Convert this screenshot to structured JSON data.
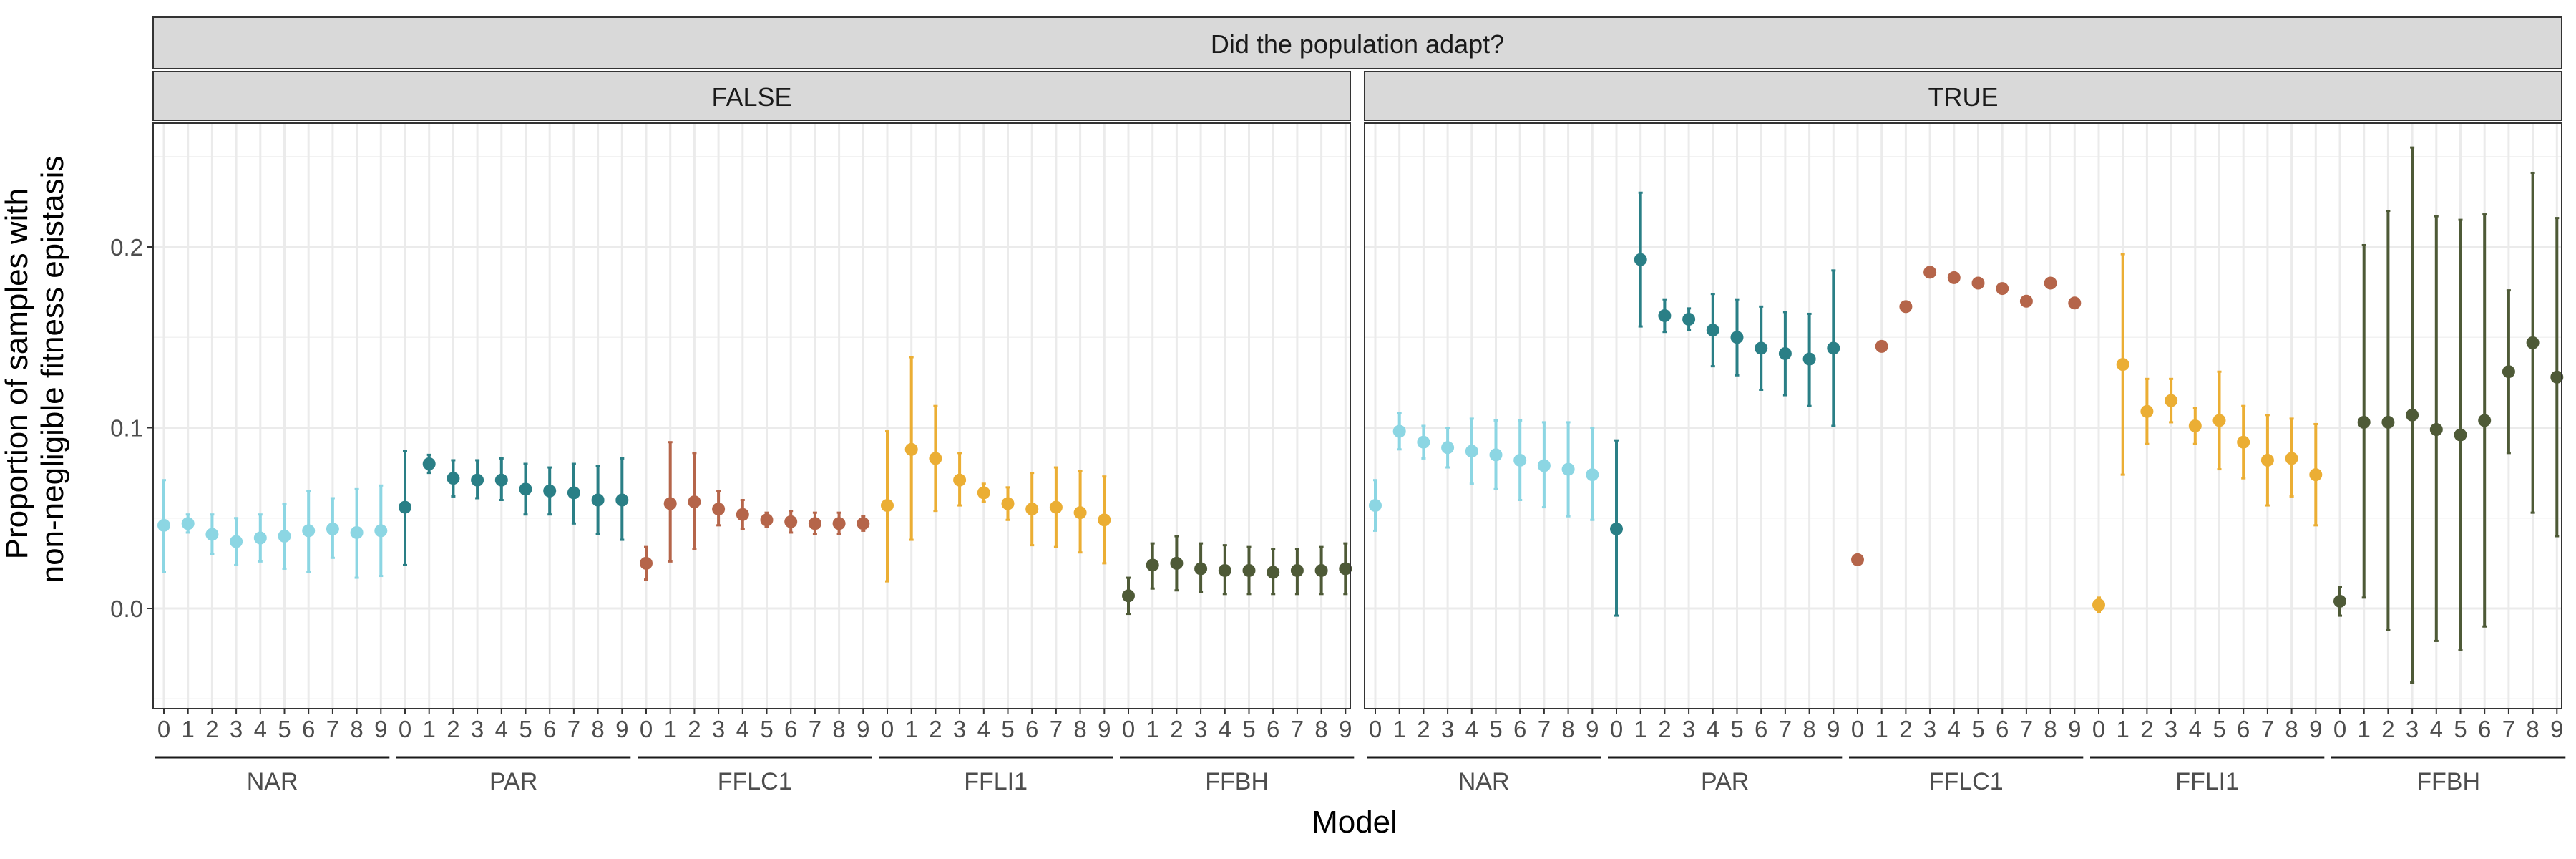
{
  "chart_data": {
    "type": "scatter",
    "title": "Did the population adapt?",
    "xlabel": "Model",
    "ylabel": [
      "Proportion of samples with",
      "non-negligible fitness epistasis"
    ],
    "ylim": [
      -0.055,
      0.27
    ],
    "yticks": [
      0.0,
      0.1,
      0.2
    ],
    "ytick_labels": [
      "0.0",
      "0.1",
      "0.2"
    ],
    "grid": true,
    "x_ticks": [
      "0",
      "1",
      "2",
      "3",
      "4",
      "5",
      "6",
      "7",
      "8",
      "9"
    ],
    "groups": [
      {
        "name": "NAR",
        "color": "#8cd6e3"
      },
      {
        "name": "PAR",
        "color": "#2a7f86"
      },
      {
        "name": "FFLC1",
        "color": "#b5654a"
      },
      {
        "name": "FFLI1",
        "color": "#ebae34"
      },
      {
        "name": "FFBH",
        "color": "#4e5a37"
      }
    ],
    "panels": [
      {
        "label": "FALSE",
        "series": [
          {
            "group": "NAR",
            "values": [
              0.046,
              0.047,
              0.041,
              0.037,
              0.039,
              0.04,
              0.043,
              0.044,
              0.042,
              0.043
            ],
            "lower": [
              0.02,
              0.042,
              0.03,
              0.024,
              0.026,
              0.022,
              0.02,
              0.028,
              0.017,
              0.018
            ],
            "upper": [
              0.071,
              0.052,
              0.052,
              0.05,
              0.052,
              0.058,
              0.065,
              0.061,
              0.066,
              0.068
            ]
          },
          {
            "group": "PAR",
            "values": [
              0.056,
              0.08,
              0.072,
              0.071,
              0.071,
              0.066,
              0.065,
              0.064,
              0.06,
              0.06
            ],
            "lower": [
              0.024,
              0.075,
              0.062,
              0.061,
              0.06,
              0.052,
              0.052,
              0.047,
              0.041,
              0.038
            ],
            "upper": [
              0.087,
              0.085,
              0.082,
              0.082,
              0.083,
              0.08,
              0.078,
              0.08,
              0.079,
              0.083
            ]
          },
          {
            "group": "FFLC1",
            "values": [
              0.025,
              0.058,
              0.059,
              0.055,
              0.052,
              0.049,
              0.048,
              0.047,
              0.047,
              0.047
            ],
            "lower": [
              0.016,
              0.026,
              0.033,
              0.046,
              0.044,
              0.045,
              0.042,
              0.041,
              0.041,
              0.043
            ],
            "upper": [
              0.034,
              0.092,
              0.086,
              0.065,
              0.06,
              0.053,
              0.054,
              0.053,
              0.053,
              0.051
            ]
          },
          {
            "group": "FFLI1",
            "values": [
              0.057,
              0.088,
              0.083,
              0.071,
              0.064,
              0.058,
              0.055,
              0.056,
              0.053,
              0.049
            ],
            "lower": [
              0.015,
              0.038,
              0.054,
              0.057,
              0.059,
              0.049,
              0.035,
              0.034,
              0.031,
              0.025
            ],
            "upper": [
              0.098,
              0.139,
              0.112,
              0.086,
              0.069,
              0.067,
              0.075,
              0.078,
              0.076,
              0.073
            ]
          },
          {
            "group": "FFBH",
            "values": [
              0.007,
              0.024,
              0.025,
              0.022,
              0.021,
              0.021,
              0.02,
              0.021,
              0.021,
              0.022
            ],
            "lower": [
              -0.003,
              0.011,
              0.01,
              0.009,
              0.008,
              0.008,
              0.008,
              0.008,
              0.008,
              0.008
            ],
            "upper": [
              0.017,
              0.036,
              0.04,
              0.036,
              0.035,
              0.034,
              0.033,
              0.033,
              0.034,
              0.036
            ]
          }
        ]
      },
      {
        "label": "TRUE",
        "series": [
          {
            "group": "NAR",
            "values": [
              0.057,
              0.098,
              0.092,
              0.089,
              0.087,
              0.085,
              0.082,
              0.079,
              0.077,
              0.074
            ],
            "lower": [
              0.043,
              0.088,
              0.083,
              0.078,
              0.069,
              0.066,
              0.06,
              0.056,
              0.051,
              0.049
            ],
            "upper": [
              0.071,
              0.108,
              0.101,
              0.1,
              0.105,
              0.104,
              0.104,
              0.103,
              0.103,
              0.1
            ]
          },
          {
            "group": "PAR",
            "values": [
              0.044,
              0.193,
              0.162,
              0.16,
              0.154,
              0.15,
              0.144,
              0.141,
              0.138,
              0.144
            ],
            "lower": [
              -0.004,
              0.156,
              0.153,
              0.154,
              0.134,
              0.129,
              0.121,
              0.118,
              0.112,
              0.101
            ],
            "upper": [
              0.093,
              0.23,
              0.171,
              0.166,
              0.174,
              0.171,
              0.167,
              0.164,
              0.163,
              0.187
            ]
          },
          {
            "group": "FFLC1",
            "values": [
              0.027,
              0.145,
              0.167,
              0.186,
              0.183,
              0.18,
              0.177,
              0.17,
              0.18,
              0.169
            ],
            "lower": [
              0.027,
              0.145,
              0.167,
              0.186,
              0.183,
              0.18,
              0.177,
              0.17,
              0.18,
              0.169
            ],
            "upper": [
              0.027,
              0.145,
              0.167,
              0.186,
              0.183,
              0.18,
              0.177,
              0.17,
              0.18,
              0.169
            ]
          },
          {
            "group": "FFLI1",
            "values": [
              0.002,
              0.135,
              0.109,
              0.115,
              0.101,
              0.104,
              0.092,
              0.082,
              0.083,
              0.074
            ],
            "lower": [
              -0.002,
              0.074,
              0.091,
              0.103,
              0.091,
              0.077,
              0.072,
              0.057,
              0.062,
              0.046
            ],
            "upper": [
              0.006,
              0.196,
              0.127,
              0.127,
              0.111,
              0.131,
              0.112,
              0.107,
              0.105,
              0.102
            ]
          },
          {
            "group": "FFBH",
            "values": [
              0.004,
              0.103,
              0.103,
              0.107,
              0.099,
              0.096,
              0.104,
              0.131,
              0.147,
              0.128
            ],
            "lower": [
              -0.004,
              0.006,
              -0.012,
              -0.041,
              -0.018,
              -0.023,
              -0.01,
              0.086,
              0.053,
              0.04
            ],
            "upper": [
              0.012,
              0.201,
              0.22,
              0.255,
              0.217,
              0.215,
              0.218,
              0.176,
              0.241,
              0.216
            ]
          }
        ]
      }
    ]
  }
}
